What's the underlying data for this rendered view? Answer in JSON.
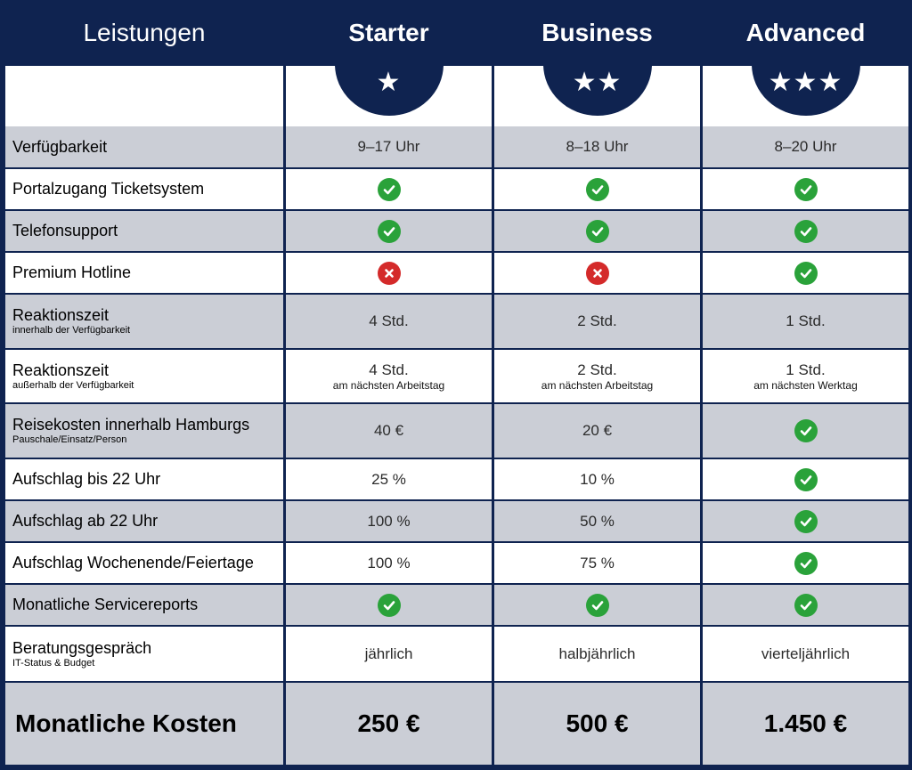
{
  "header": {
    "first_label": "Leistungen",
    "plans": [
      {
        "name": "Starter",
        "stars": "★"
      },
      {
        "name": "Business",
        "stars": "★★"
      },
      {
        "name": "Advanced",
        "stars": "★★★"
      }
    ]
  },
  "rows": [
    {
      "label": "Verfügbarkeit",
      "sub": "",
      "cells": [
        {
          "type": "text",
          "main": "9–17 Uhr",
          "sub": ""
        },
        {
          "type": "text",
          "main": "8–18 Uhr",
          "sub": ""
        },
        {
          "type": "text",
          "main": "8–20 Uhr",
          "sub": ""
        }
      ]
    },
    {
      "label": "Portalzugang Ticketsystem",
      "sub": "",
      "cells": [
        {
          "type": "check"
        },
        {
          "type": "check"
        },
        {
          "type": "check"
        }
      ]
    },
    {
      "label": "Telefonsupport",
      "sub": "",
      "cells": [
        {
          "type": "check"
        },
        {
          "type": "check"
        },
        {
          "type": "check"
        }
      ]
    },
    {
      "label": "Premium Hotline",
      "sub": "",
      "cells": [
        {
          "type": "cross"
        },
        {
          "type": "cross"
        },
        {
          "type": "check"
        }
      ]
    },
    {
      "label": "Reaktionszeit",
      "sub": "innerhalb der Verfügbarkeit",
      "cells": [
        {
          "type": "text",
          "main": "4 Std.",
          "sub": ""
        },
        {
          "type": "text",
          "main": "2 Std.",
          "sub": ""
        },
        {
          "type": "text",
          "main": "1 Std.",
          "sub": ""
        }
      ]
    },
    {
      "label": "Reaktionszeit",
      "sub": "außerhalb der Verfügbarkeit",
      "cells": [
        {
          "type": "text",
          "main": "4 Std.",
          "sub": "am nächsten Arbeitstag"
        },
        {
          "type": "text",
          "main": "2 Std.",
          "sub": "am nächsten Arbeitstag"
        },
        {
          "type": "text",
          "main": "1 Std.",
          "sub": "am nächsten Werktag"
        }
      ]
    },
    {
      "label": "Reisekosten innerhalb Hamburgs",
      "sub": "Pauschale/Einsatz/Person",
      "cells": [
        {
          "type": "text",
          "main": "40 €",
          "sub": ""
        },
        {
          "type": "text",
          "main": "20 €",
          "sub": ""
        },
        {
          "type": "check"
        }
      ]
    },
    {
      "label": "Aufschlag bis 22 Uhr",
      "sub": "",
      "cells": [
        {
          "type": "text",
          "main": "25 %",
          "sub": ""
        },
        {
          "type": "text",
          "main": "10 %",
          "sub": ""
        },
        {
          "type": "check"
        }
      ]
    },
    {
      "label": "Aufschlag ab 22 Uhr",
      "sub": "",
      "cells": [
        {
          "type": "text",
          "main": "100 %",
          "sub": ""
        },
        {
          "type": "text",
          "main": "50 %",
          "sub": ""
        },
        {
          "type": "check"
        }
      ]
    },
    {
      "label": "Aufschlag Wochenende/Feiertage",
      "sub": "",
      "cells": [
        {
          "type": "text",
          "main": "100 %",
          "sub": ""
        },
        {
          "type": "text",
          "main": "75 %",
          "sub": ""
        },
        {
          "type": "check"
        }
      ]
    },
    {
      "label": "Monatliche Servicereports",
      "sub": "",
      "cells": [
        {
          "type": "check"
        },
        {
          "type": "check"
        },
        {
          "type": "check"
        }
      ]
    },
    {
      "label": "Beratungsgespräch",
      "sub": "IT-Status & Budget",
      "cells": [
        {
          "type": "text",
          "main": "jährlich",
          "sub": ""
        },
        {
          "type": "text",
          "main": "halbjährlich",
          "sub": ""
        },
        {
          "type": "text",
          "main": "vierteljährlich",
          "sub": ""
        }
      ]
    }
  ],
  "footer": {
    "label": "Monatliche Kosten",
    "prices": [
      "250 €",
      "500 €",
      "1.450 €"
    ]
  },
  "colors": {
    "navy": "#0f2350",
    "row_gray": "#cbced6",
    "row_white": "#ffffff",
    "check": "#2aa23a",
    "cross": "#d42a2a"
  }
}
